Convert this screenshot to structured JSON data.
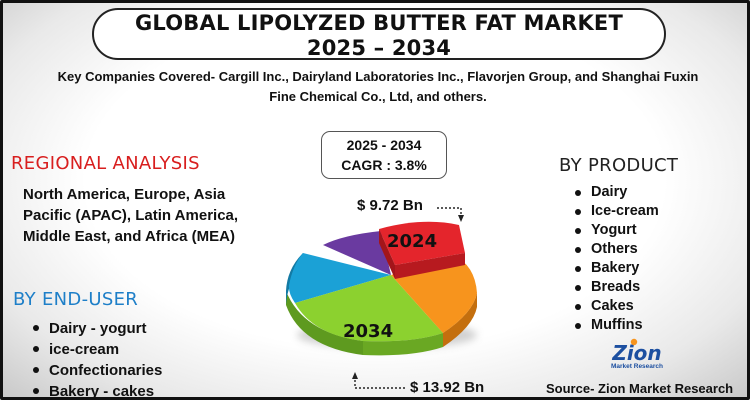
{
  "title": {
    "line1": "GLOBAL LIPOLYZED BUTTER FAT MARKET",
    "line2": "2025 – 2034"
  },
  "companies": "Key Companies Covered- Cargill Inc., Dairyland Laboratories Inc., Flavorjen Group, and Shanghai Fuxin Fine Chemical Co., Ltd, and others.",
  "period": {
    "years": "2025 - 2034",
    "cagr": "CAGR : 3.8%"
  },
  "regional": {
    "heading": "REGIONAL ANALYSIS",
    "text": "North America, Europe, Asia Pacific (APAC), Latin America, Middle East, and Africa (MEA)"
  },
  "end_user": {
    "heading": "BY END-USER",
    "items": [
      "Dairy - yogurt",
      "ice-cream",
      "Confectionaries",
      "Bakery - cakes"
    ]
  },
  "product": {
    "heading": "BY PRODUCT",
    "items": [
      "Dairy",
      "Ice-cream",
      "Yogurt",
      "Others",
      "Bakery",
      "Breads",
      "Cakes",
      "Muffins"
    ]
  },
  "chart": {
    "label_2024": "2024",
    "label_2034": "2034",
    "value_2024": "$ 9.72 Bn",
    "value_2034": "$ 13.92 Bn",
    "colors": {
      "red": "#e4252c",
      "orange": "#f7941d",
      "green": "#8cd12f",
      "blue": "#1ba1d6",
      "purple": "#6a3aa0"
    }
  },
  "logo": {
    "name": "Zion",
    "sub": "Market Research"
  },
  "source": "Source- Zion Market Research"
}
